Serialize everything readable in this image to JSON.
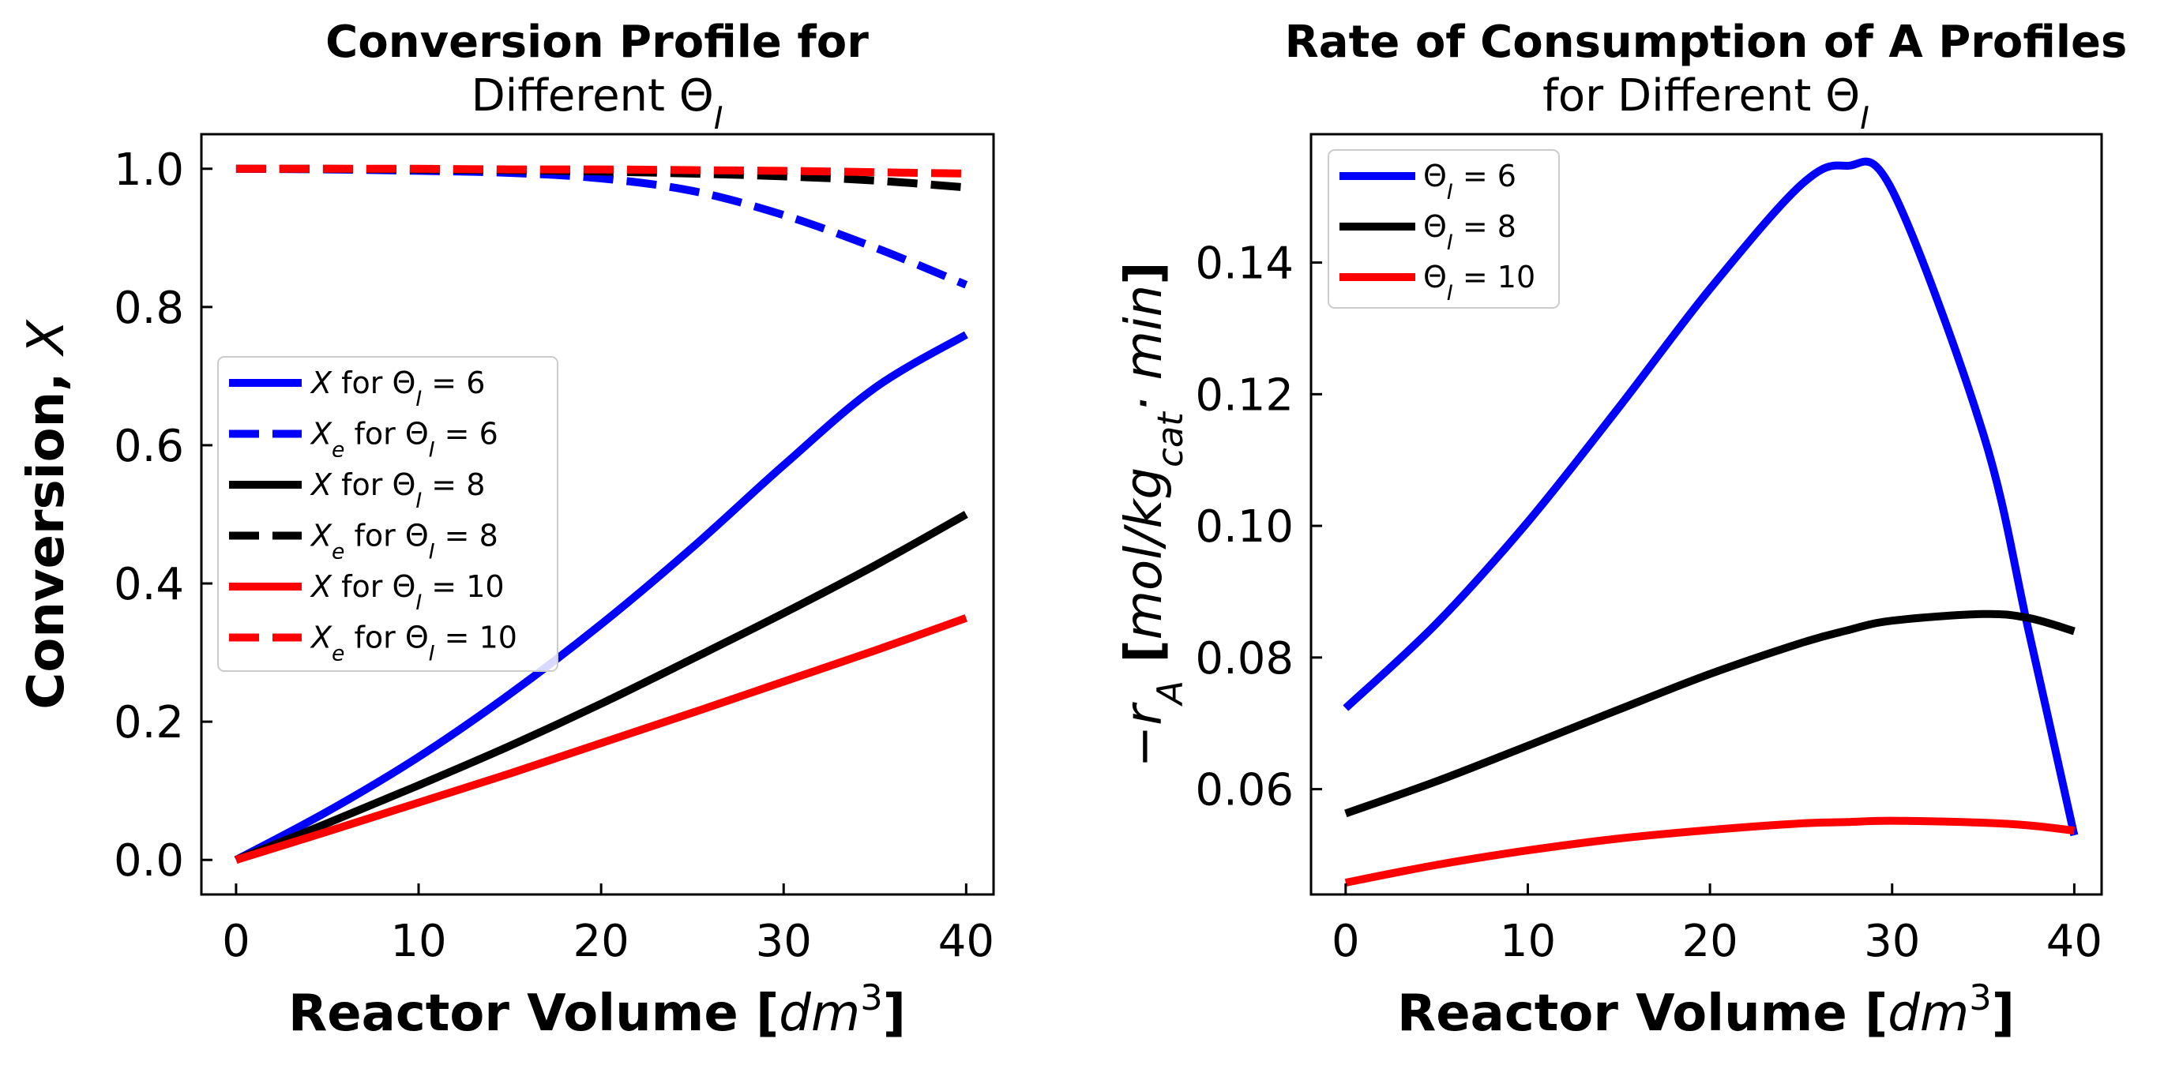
{
  "chart_data": [
    {
      "type": "line",
      "title": [
        "Conversion Profile for",
        "Different Θ",
        "I"
      ],
      "xlabel": [
        "Reactor Volume [",
        "dm",
        "3",
        "]"
      ],
      "ylabel": [
        "Conversion, ",
        "X"
      ],
      "xlim": [
        -1.9,
        41.5
      ],
      "ylim": [
        -0.05,
        1.05
      ],
      "xticks": [
        "0",
        "10",
        "20",
        "30",
        "40"
      ],
      "yticks": [
        "0.0",
        "0.2",
        "0.4",
        "0.6",
        "0.8",
        "1.0"
      ],
      "legend_placement": "center-left",
      "grid": false,
      "x": [
        0,
        5,
        10,
        15,
        20,
        25,
        30,
        35,
        40
      ],
      "series": [
        {
          "name": "X for Θ_I = 6",
          "legend": [
            "X",
            " for Θ",
            "I",
            " = 6"
          ],
          "color": "#0000ff",
          "dash": "solid",
          "values": [
            0.0,
            0.07,
            0.149,
            0.24,
            0.341,
            0.452,
            0.571,
            0.683,
            0.76
          ]
        },
        {
          "name": "X_e for Θ_I = 6",
          "legend": [
            "X",
            "e",
            " for Θ",
            "I",
            " = 6"
          ],
          "color": "#0000ff",
          "dash": "dashed",
          "values": [
            1.0,
            0.999,
            0.997,
            0.994,
            0.986,
            0.968,
            0.933,
            0.886,
            0.832
          ]
        },
        {
          "name": "X for Θ_I = 8",
          "legend": [
            "X",
            " for Θ",
            "I",
            " = 8"
          ],
          "color": "#000000",
          "dash": "solid",
          "values": [
            0.0,
            0.053,
            0.108,
            0.165,
            0.226,
            0.291,
            0.357,
            0.426,
            0.5
          ]
        },
        {
          "name": "X_e for Θ_I = 8",
          "legend": [
            "X",
            "e",
            " for Θ",
            "I",
            " = 8"
          ],
          "color": "#000000",
          "dash": "dashed",
          "values": [
            1.0,
            1.0,
            0.999,
            0.998,
            0.996,
            0.993,
            0.989,
            0.983,
            0.973
          ]
        },
        {
          "name": "X for Θ_I = 10",
          "legend": [
            "X",
            " for Θ",
            "I",
            " = 10"
          ],
          "color": "#ff0000",
          "dash": "solid",
          "values": [
            0.0,
            0.041,
            0.083,
            0.125,
            0.169,
            0.213,
            0.258,
            0.303,
            0.35
          ]
        },
        {
          "name": "X_e for Θ_I = 10",
          "legend": [
            "X",
            "e",
            " for Θ",
            "I",
            " = 10"
          ],
          "color": "#ff0000",
          "dash": "dashed",
          "values": [
            1.0,
            1.0,
            1.0,
            0.999,
            0.999,
            0.998,
            0.997,
            0.995,
            0.993
          ]
        }
      ]
    },
    {
      "type": "line",
      "title": [
        "Rate of Consumption of A Profiles",
        "for Different Θ",
        "I"
      ],
      "xlabel": [
        "Reactor Volume [",
        "dm",
        "3",
        "]"
      ],
      "ylabel": [
        "−r",
        "A",
        " [",
        "mol/kg",
        "cat",
        "· min",
        "]"
      ],
      "xlim": [
        -1.9,
        41.5
      ],
      "ylim": [
        0.044,
        0.1595
      ],
      "xticks": [
        "0",
        "10",
        "20",
        "30",
        "40"
      ],
      "yticks": [
        "0.06",
        "0.08",
        "0.10",
        "0.12",
        "0.14"
      ],
      "legend_placement": "top-left",
      "grid": false,
      "x": [
        0,
        5,
        10,
        15,
        20,
        25,
        27.5,
        30,
        35,
        37.5,
        40
      ],
      "series": [
        {
          "name": "Θ_I = 6",
          "legend": [
            "Θ",
            "I",
            " = 6"
          ],
          "color": "#0000ff",
          "dash": "solid",
          "values": [
            0.0723,
            0.0852,
            0.1006,
            0.118,
            0.136,
            0.1518,
            0.1547,
            0.151,
            0.114,
            0.084,
            0.053
          ]
        },
        {
          "name": "Θ_I = 8",
          "legend": [
            "Θ",
            "I",
            " = 8"
          ],
          "color": "#000000",
          "dash": "solid",
          "values": [
            0.0563,
            0.0612,
            0.0666,
            0.0721,
            0.0775,
            0.0822,
            0.0841,
            0.0856,
            0.0866,
            0.086,
            0.084
          ]
        },
        {
          "name": "Θ_I = 10",
          "legend": [
            "Θ",
            "I",
            " = 10"
          ],
          "color": "#ff0000",
          "dash": "solid",
          "values": [
            0.0458,
            0.0485,
            0.0507,
            0.0525,
            0.0538,
            0.0548,
            0.055,
            0.0552,
            0.0549,
            0.0545,
            0.0537
          ]
        }
      ]
    }
  ]
}
